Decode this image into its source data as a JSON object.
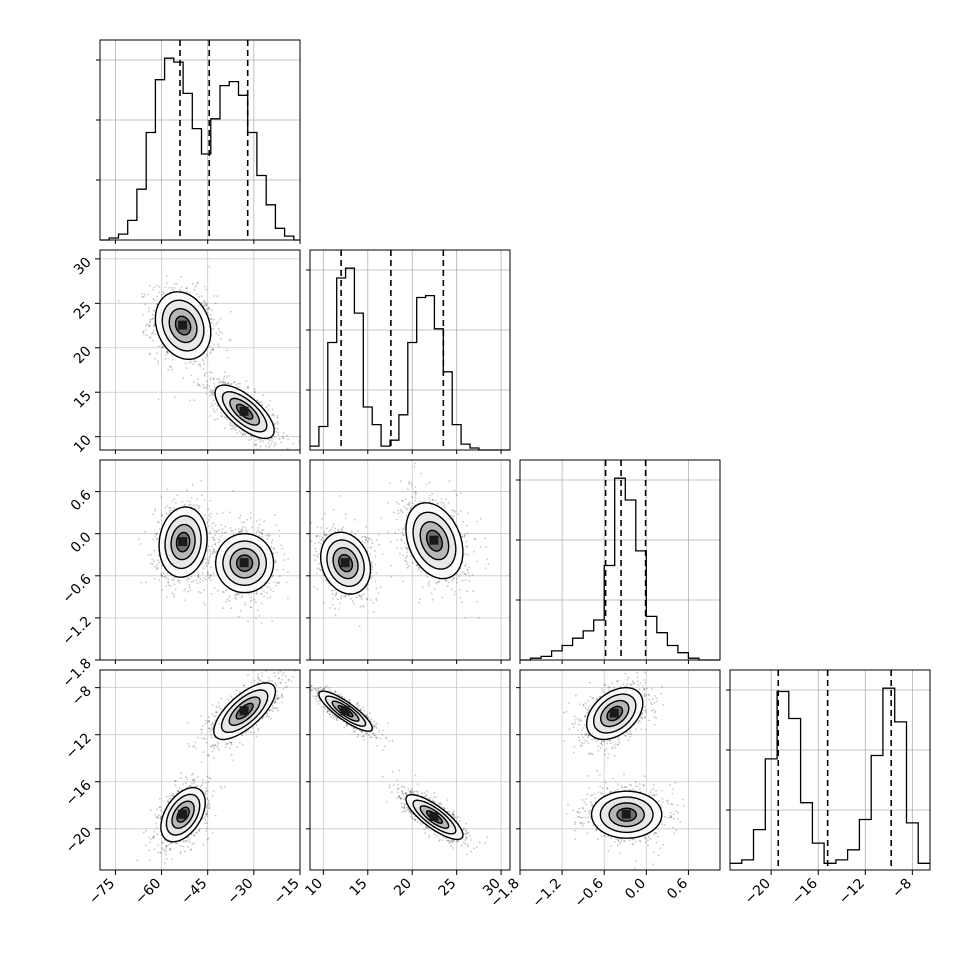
{
  "chart_data": {
    "type": "corner",
    "parameters": [
      "p0",
      "p1",
      "p2",
      "p3"
    ],
    "ranges": {
      "p0": [
        -80,
        -15
      ],
      "p1": [
        8.5,
        31
      ],
      "p2": [
        -1.8,
        1.05
      ],
      "p3": [
        -23.5,
        -6.5
      ]
    },
    "ticks": {
      "p0": [
        "−75",
        "−60",
        "−45",
        "−30",
        "−15"
      ],
      "p1": [
        "10",
        "15",
        "20",
        "25",
        "30"
      ],
      "p2": [
        "−1.8",
        "−1.2",
        "−0.6",
        "0.0",
        "0.6"
      ],
      "p3": [
        "−20",
        "−16",
        "−12",
        "−8"
      ]
    },
    "tick_values": {
      "p0": [
        -75,
        -60,
        -45,
        -30,
        -15
      ],
      "p1": [
        10,
        15,
        20,
        25,
        30
      ],
      "p2": [
        -1.8,
        -1.2,
        -0.6,
        0.0,
        0.6
      ],
      "p3": [
        -20,
        -16,
        -12,
        -8
      ]
    },
    "quantiles": {
      "p0": [
        -54,
        -44.5,
        -32
      ],
      "p1": [
        12.0,
        17.6,
        23.5
      ],
      "p2": [
        -0.58,
        -0.36,
        -0.01
      ],
      "p3": [
        -19.4,
        -15.2,
        -9.8
      ]
    },
    "histograms": {
      "p0": {
        "edges": [
          -80,
          -77,
          -74,
          -71,
          -68,
          -65,
          -62,
          -59,
          -56,
          -53,
          -50,
          -47,
          -44,
          -41,
          -38,
          -35,
          -32,
          -29,
          -26,
          -23,
          -20,
          -17,
          -15
        ],
        "counts": [
          0,
          1,
          3,
          10,
          26,
          55,
          82,
          93,
          91,
          75,
          57,
          44,
          62,
          79,
          81,
          74,
          55,
          33,
          18,
          6,
          2,
          0
        ]
      },
      "p1": {
        "edges": [
          8.5,
          9.5,
          10.5,
          11.5,
          12.5,
          13.5,
          14.5,
          15.5,
          16.5,
          17.5,
          18.5,
          19.5,
          20.5,
          21.5,
          22.5,
          23.5,
          24.5,
          25.5,
          26.5,
          27.5,
          28.5,
          29.5,
          31
        ],
        "counts": [
          2,
          12,
          55,
          88,
          93,
          70,
          22,
          13,
          2,
          5,
          18,
          55,
          78,
          79,
          62,
          40,
          13,
          3,
          1,
          0,
          0,
          0
        ]
      },
      "p2": {
        "edges": [
          -1.8,
          -1.65,
          -1.5,
          -1.35,
          -1.2,
          -1.05,
          -0.9,
          -0.75,
          -0.6,
          -0.45,
          -0.3,
          -0.15,
          0.0,
          0.15,
          0.3,
          0.45,
          0.6,
          0.75,
          0.9,
          1.05
        ],
        "counts": [
          0,
          1,
          2,
          5,
          8,
          12,
          16,
          22,
          52,
          100,
          88,
          60,
          24,
          15,
          8,
          4,
          1,
          0,
          0
        ]
      },
      "p3": {
        "edges": [
          -23.5,
          -22.5,
          -21.5,
          -20.5,
          -19.5,
          -18.5,
          -17.5,
          -16.5,
          -15.5,
          -14.5,
          -13.5,
          -12.5,
          -11.5,
          -10.5,
          -9.5,
          -8.5,
          -7.5,
          -6.5
        ],
        "counts": [
          2,
          3,
          12,
          33,
          53,
          45,
          20,
          8,
          2,
          3,
          6,
          15,
          34,
          54,
          44,
          14,
          2
        ]
      }
    },
    "pairs": [
      {
        "x": "p0",
        "y": "p1",
        "clusters": [
          {
            "mx": -53,
            "my": 22.5,
            "sx": 4.5,
            "sy": 1.9,
            "rho": -0.2,
            "w": 0.5
          },
          {
            "mx": -33,
            "my": 12.8,
            "sx": 4.8,
            "sy": 1.5,
            "rho": -0.7,
            "w": 0.5
          }
        ]
      },
      {
        "x": "p0",
        "y": "p2",
        "clusters": [
          {
            "mx": -53,
            "my": -0.12,
            "sx": 3.9,
            "sy": 0.25,
            "rho": 0.1,
            "w": 0.5
          },
          {
            "mx": -33,
            "my": -0.42,
            "sx": 4.7,
            "sy": 0.21,
            "rho": 0.0,
            "w": 0.5
          }
        ]
      },
      {
        "x": "p0",
        "y": "p3",
        "clusters": [
          {
            "mx": -53,
            "my": -18.8,
            "sx": 3.6,
            "sy": 1.15,
            "rho": 0.45,
            "w": 0.5
          },
          {
            "mx": -33,
            "my": -10.0,
            "sx": 5.0,
            "sy": 1.2,
            "rho": 0.7,
            "w": 0.5
          }
        ]
      },
      {
        "x": "p1",
        "y": "p2",
        "clusters": [
          {
            "mx": 12.5,
            "my": -0.42,
            "sx": 1.4,
            "sy": 0.22,
            "rho": -0.2,
            "w": 0.5
          },
          {
            "mx": 22.5,
            "my": -0.1,
            "sx": 1.6,
            "sy": 0.27,
            "rho": -0.3,
            "w": 0.5
          }
        ]
      },
      {
        "x": "p1",
        "y": "p3",
        "clusters": [
          {
            "mx": 12.5,
            "my": -10.0,
            "sx": 1.5,
            "sy": 0.85,
            "rho": -0.85,
            "w": 0.5
          },
          {
            "mx": 22.5,
            "my": -19.0,
            "sx": 1.6,
            "sy": 0.95,
            "rho": -0.8,
            "w": 0.5
          }
        ]
      },
      {
        "x": "p2",
        "y": "p3",
        "clusters": [
          {
            "mx": -0.45,
            "my": -10.2,
            "sx": 0.2,
            "sy": 1.1,
            "rho": 0.4,
            "w": 0.5
          },
          {
            "mx": -0.28,
            "my": -18.8,
            "sx": 0.25,
            "sy": 1.0,
            "rho": 0.0,
            "w": 0.5
          }
        ]
      }
    ],
    "grid": true,
    "legend": "none"
  }
}
